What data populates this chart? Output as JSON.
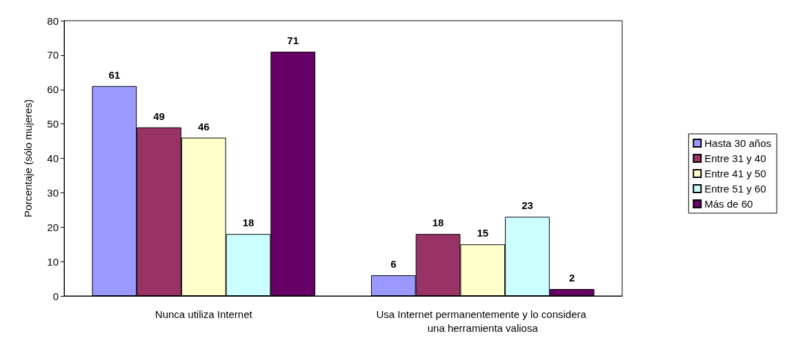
{
  "chart_data": {
    "type": "bar",
    "ylabel": "Porcentaje (sólo mujeres)",
    "categories": [
      "Nunca utiliza Internet",
      "Usa Internet permanentemente y lo considera una herramienta valiosa"
    ],
    "series": [
      {
        "name": "Hasta 30 años",
        "color": "#9999ff",
        "values": [
          61,
          6
        ]
      },
      {
        "name": "Entre 31 y 40",
        "color": "#993366",
        "values": [
          49,
          18
        ]
      },
      {
        "name": "Entre 41 y 50",
        "color": "#ffffcc",
        "values": [
          46,
          15
        ]
      },
      {
        "name": "Entre 51 y 60",
        "color": "#ccffff",
        "values": [
          18,
          23
        ]
      },
      {
        "name": "Más de 60",
        "color": "#660066",
        "values": [
          71,
          2
        ]
      }
    ],
    "ylim": [
      0,
      80
    ],
    "yticks": [
      0,
      10,
      20,
      30,
      40,
      50,
      60,
      70,
      80
    ],
    "grid": false,
    "legend": "right",
    "data_labels": true
  }
}
